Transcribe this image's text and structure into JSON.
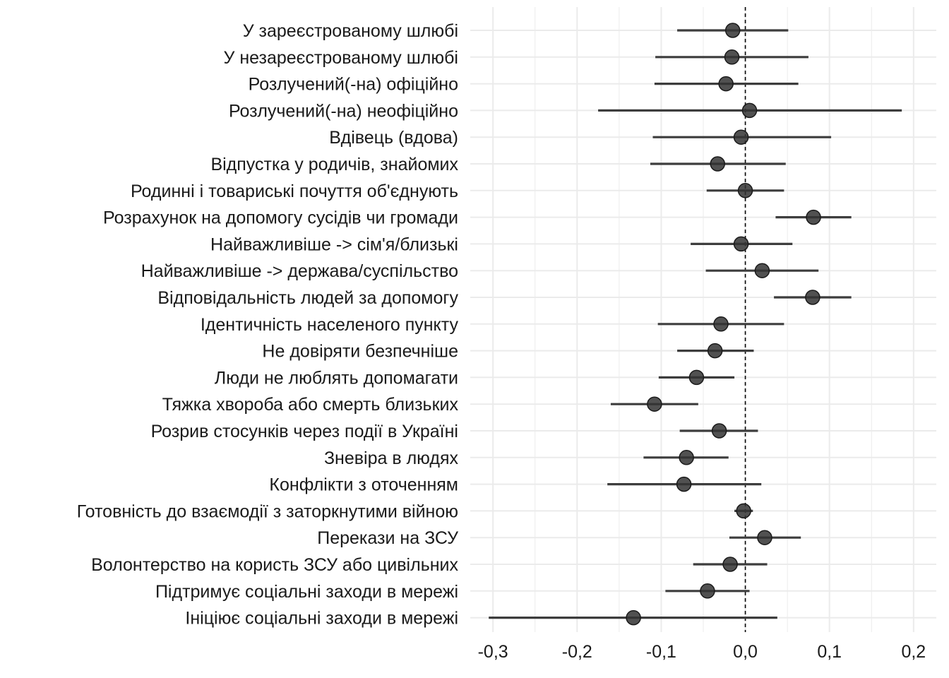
{
  "chart_data": {
    "type": "forest",
    "title": "",
    "xlabel": "",
    "ylabel": "",
    "xlim": [
      -0.3,
      0.2
    ],
    "x_ticks": [
      -0.3,
      -0.2,
      -0.1,
      0.0,
      0.1,
      0.2
    ],
    "x_tick_labels": [
      "-0,3",
      "-0,2",
      "-0,1",
      "0,0",
      "0,1",
      "0,2"
    ],
    "reference_line": 0.0,
    "grid": true,
    "point_color": "#333333",
    "line_color": "#3d3d3d",
    "grid_color": "#ebebeb",
    "rows": [
      {
        "label": "У зареєстрованому шлюбі",
        "estimate": -0.015,
        "low": -0.081,
        "high": 0.051
      },
      {
        "label": "У незареєстрованому шлюбі",
        "estimate": -0.016,
        "low": -0.107,
        "high": 0.075
      },
      {
        "label": "Розлучений(-на) офіційно",
        "estimate": -0.023,
        "low": -0.108,
        "high": 0.063
      },
      {
        "label": "Розлучений(-на) неофіційно",
        "estimate": 0.005,
        "low": -0.175,
        "high": 0.186
      },
      {
        "label": "Вдівець (вдова)",
        "estimate": -0.005,
        "low": -0.11,
        "high": 0.102
      },
      {
        "label": "Відпустка у родичів, знайомих",
        "estimate": -0.033,
        "low": -0.113,
        "high": 0.048
      },
      {
        "label": "Родинні і товариські почуття об'єднують",
        "estimate": 0.0,
        "low": -0.046,
        "high": 0.046
      },
      {
        "label": "Розрахунок на допомогу сусідів чи громади",
        "estimate": 0.081,
        "low": 0.036,
        "high": 0.126
      },
      {
        "label": "Найважливіше -> сім'я/близькі",
        "estimate": -0.005,
        "low": -0.065,
        "high": 0.056
      },
      {
        "label": "Найважливіше -> держава/суспільство",
        "estimate": 0.02,
        "low": -0.047,
        "high": 0.087
      },
      {
        "label": "Відповідальність людей за допомогу",
        "estimate": 0.08,
        "low": 0.034,
        "high": 0.126
      },
      {
        "label": "Ідентичність населеного пункту",
        "estimate": -0.029,
        "low": -0.104,
        "high": 0.046
      },
      {
        "label": "Не довіряти безпечніше",
        "estimate": -0.036,
        "low": -0.081,
        "high": 0.01
      },
      {
        "label": "Люди не люблять допомагати",
        "estimate": -0.058,
        "low": -0.103,
        "high": -0.013
      },
      {
        "label": "Тяжка хвороба або смерть близьких",
        "estimate": -0.108,
        "low": -0.16,
        "high": -0.056
      },
      {
        "label": "Розрив стосунків через події в Україні",
        "estimate": -0.031,
        "low": -0.078,
        "high": 0.015
      },
      {
        "label": "Зневіра в людях",
        "estimate": -0.07,
        "low": -0.121,
        "high": -0.02
      },
      {
        "label": "Конфлікти з оточенням",
        "estimate": -0.073,
        "low": -0.164,
        "high": 0.019
      },
      {
        "label": "Готовність до взаємодії з заторкнутими війною",
        "estimate": -0.002,
        "low": -0.013,
        "high": 0.009
      },
      {
        "label": "Перекази на ЗСУ",
        "estimate": 0.023,
        "low": -0.019,
        "high": 0.066
      },
      {
        "label": "Волонтерство на користь ЗСУ або цивільних",
        "estimate": -0.018,
        "low": -0.062,
        "high": 0.026
      },
      {
        "label": "Підтримує соціальні заходи в мережі",
        "estimate": -0.045,
        "low": -0.095,
        "high": 0.005
      },
      {
        "label": "Ініціює соціальні заходи в мережі",
        "estimate": -0.133,
        "low": -0.305,
        "high": 0.038
      }
    ]
  }
}
